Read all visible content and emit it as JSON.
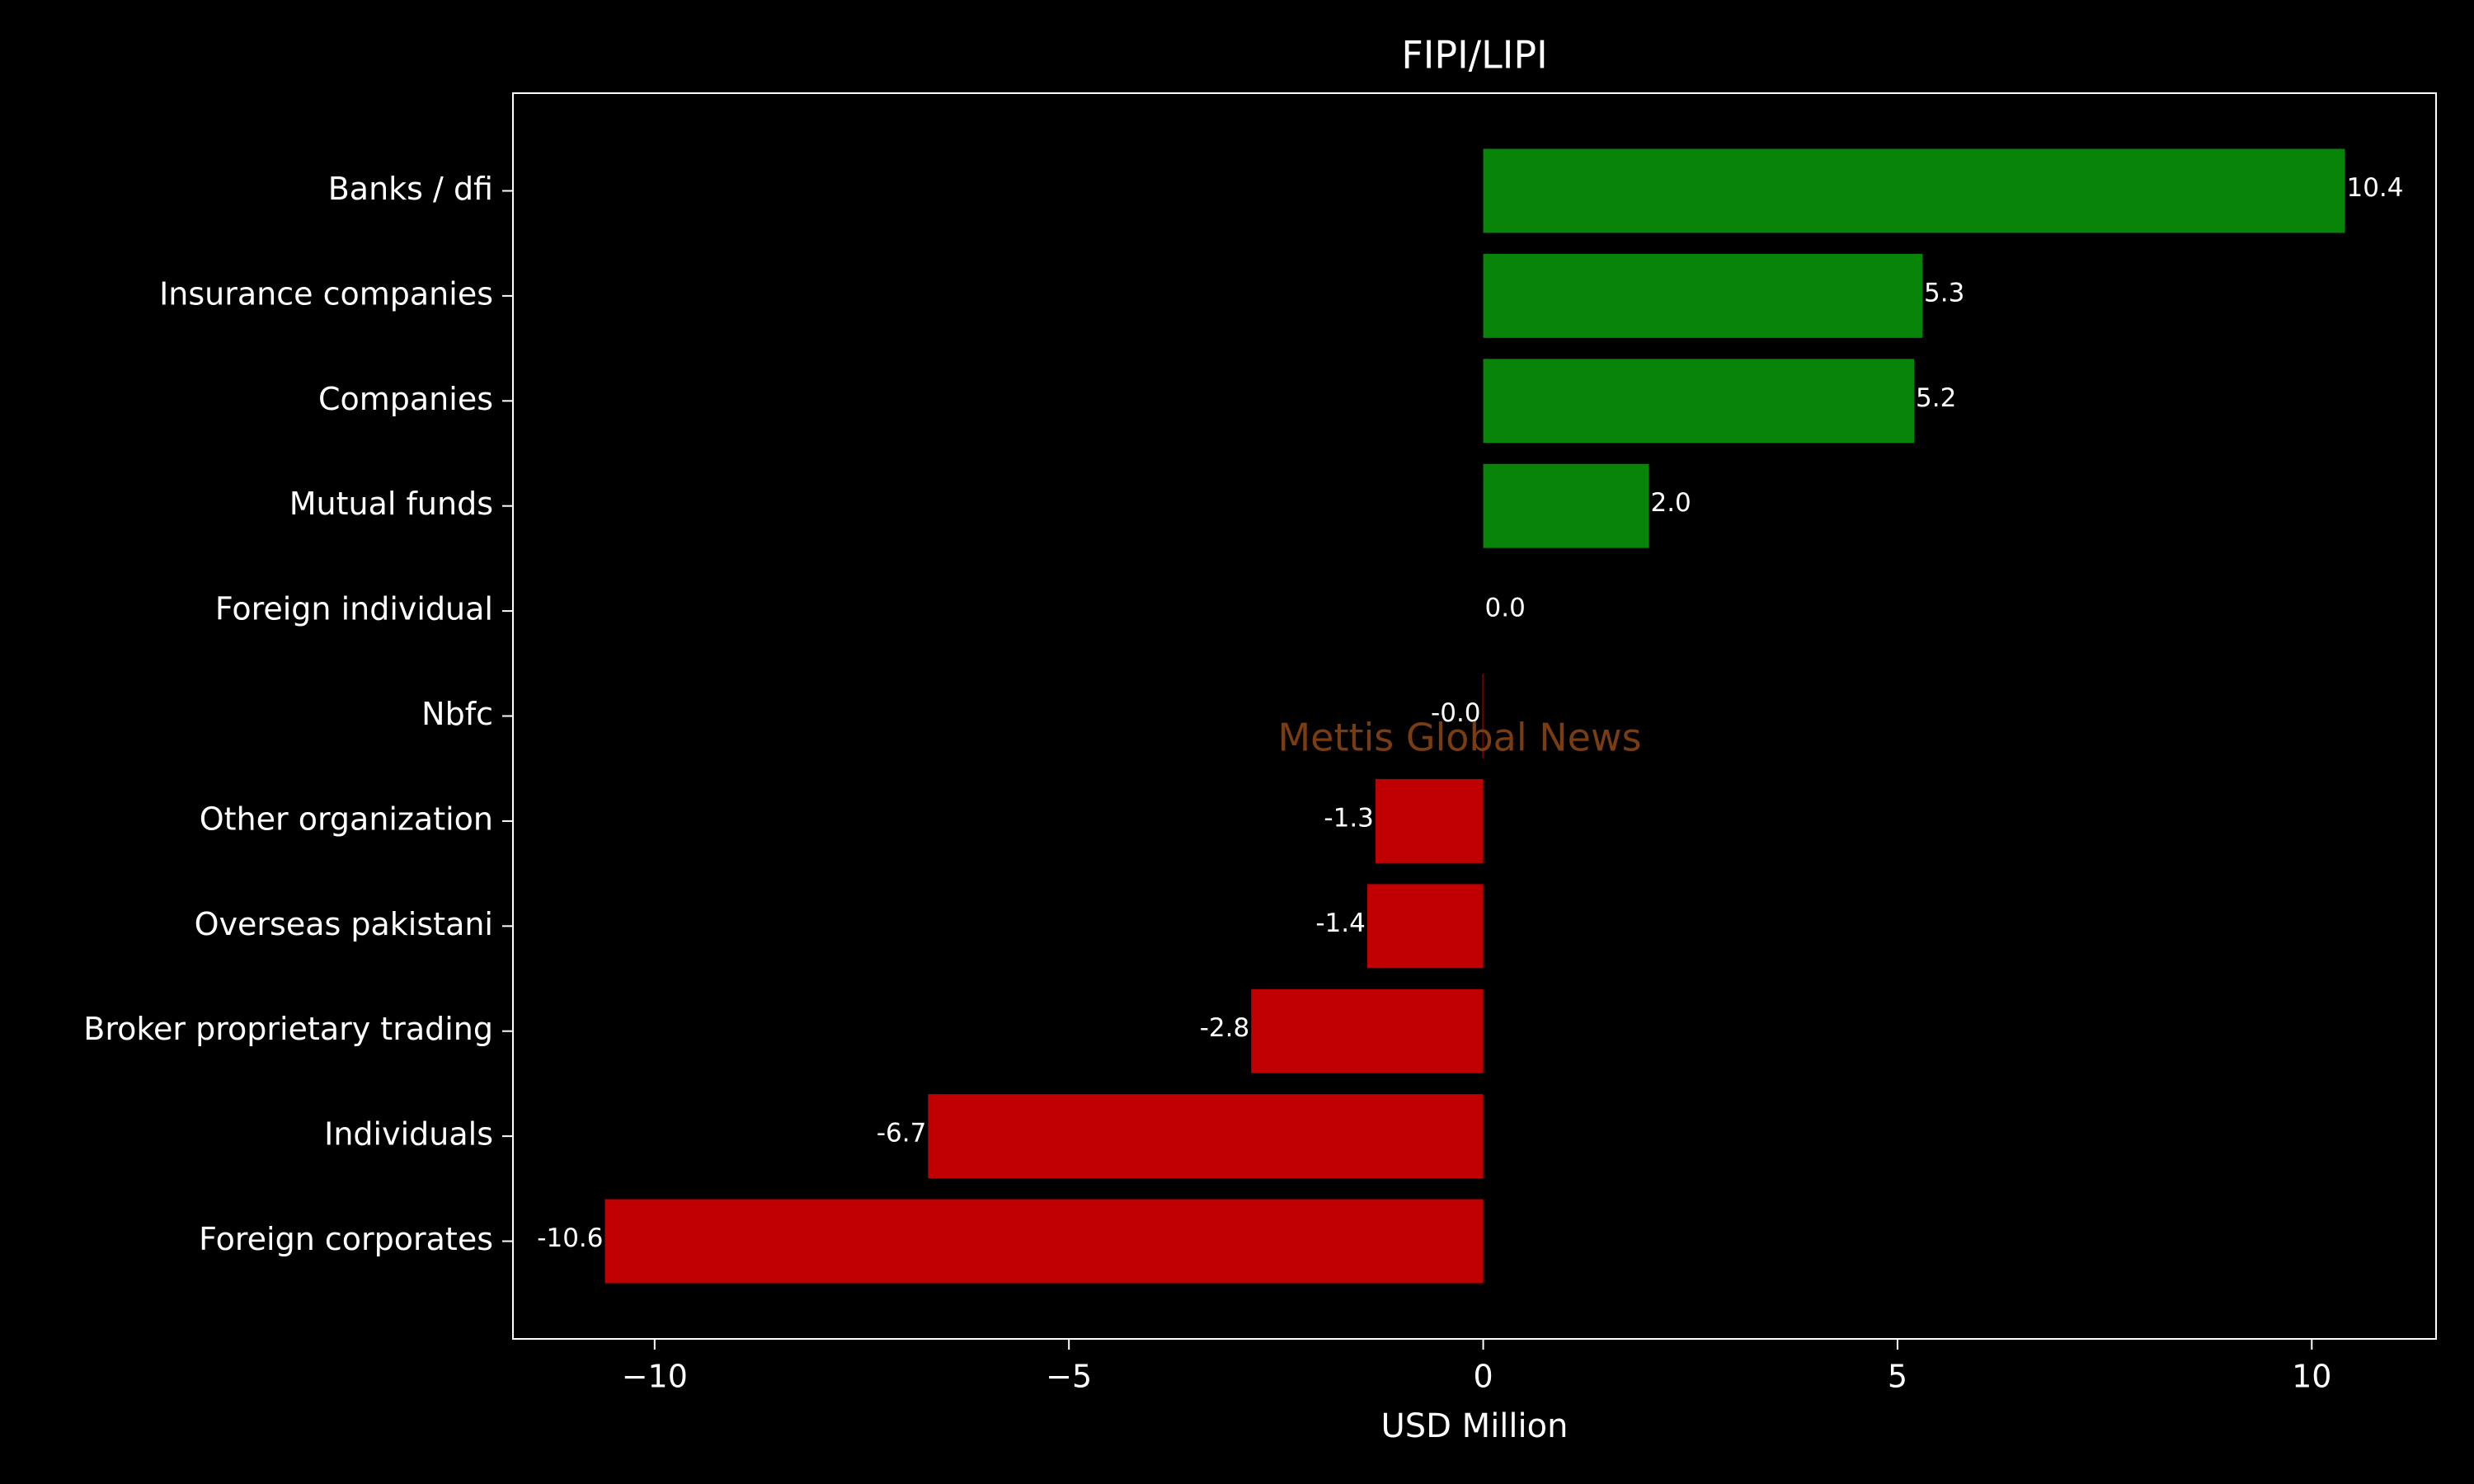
{
  "chart_data": {
    "type": "barh",
    "title": "FIPI/LIPI",
    "xlabel": "USD Million",
    "watermark": "Mettis Global News",
    "categories": [
      "Banks / dfi",
      "Insurance companies",
      "Companies",
      "Mutual funds",
      "Foreign individual",
      "Nbfc",
      "Other organization",
      "Overseas pakistani",
      "Broker proprietary trading",
      "Individuals",
      "Foreign corporates "
    ],
    "values": [
      10.4,
      5.3,
      5.2,
      2.0,
      0,
      -0.01,
      -1.3,
      -1.4,
      -2.8,
      -6.7,
      -10.6
    ],
    "value_labels": [
      "10.4",
      "5.3",
      "5.2",
      "2.0",
      "0.0",
      "-0.0",
      "-1.3",
      "-1.4",
      "-2.8",
      "-6.7",
      "-10.6"
    ],
    "colors": [
      "#088408",
      "#088408",
      "#088408",
      "#088408",
      "#088408",
      "#c00000",
      "#c00000",
      "#c00000",
      "#c00000",
      "#c00000",
      "#c00000"
    ],
    "xlim": [
      -11.71,
      11.5
    ],
    "xticks": [
      {
        "value": -10,
        "label": "−10"
      },
      {
        "value": -5,
        "label": "−5"
      },
      0,
      5,
      10
    ]
  }
}
